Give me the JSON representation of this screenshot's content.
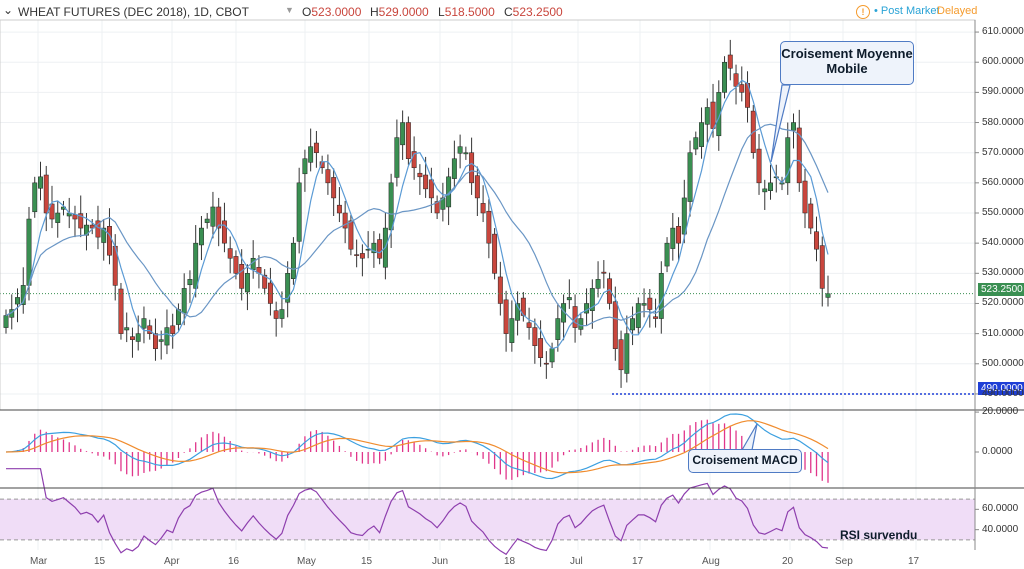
{
  "header": {
    "symbol": "WHEAT FUTURES (DEC 2018), 1D, CBOT",
    "open_label": "O",
    "open": "523.0000",
    "high_label": "H",
    "high": "529.0000",
    "low_label": "L",
    "low": "518.5000",
    "close_label": "C",
    "close": "523.2500",
    "status_icon": "!",
    "post_market": "Post Market",
    "delayed": "Delayed"
  },
  "annotations": {
    "ma_cross": "Croisement Moyenne Mobile",
    "macd_cross": "Croisement MACD",
    "rsi": "RSI survendu"
  },
  "price_tags": {
    "last": "523.2500",
    "support": "490.0000"
  },
  "colors": {
    "up": "#3a8f52",
    "down": "#c9463d",
    "ma_fast": "#5b9bd5",
    "ma_slow": "#6a96c5",
    "macd": "#3ca0e0",
    "signal": "#f08c2e",
    "hist": "#e0358a",
    "rsi": "#8e3fae",
    "rsi_band": "#f0ddf7",
    "support": "#1f3fd6"
  },
  "chart_data": [
    {
      "type": "candlestick",
      "title": "WHEAT FUTURES (DEC 2018), 1D, CBOT",
      "ylim": [
        486,
        614
      ],
      "y_ticks": [
        490,
        500,
        510,
        520,
        530,
        540,
        550,
        560,
        570,
        580,
        590,
        600,
        610
      ],
      "x_ticks": [
        "Mar",
        "15",
        "Apr",
        "16",
        "May",
        "15",
        "Jun",
        "18",
        "Jul",
        "17",
        "Aug",
        "20",
        "Sep",
        "17"
      ],
      "close": [
        516,
        518,
        522,
        526,
        548,
        560,
        562,
        550,
        548,
        550,
        552,
        550,
        548,
        545,
        546,
        545,
        542,
        545,
        536,
        526,
        510,
        512,
        508,
        510,
        515,
        510,
        505,
        508,
        512,
        510,
        518,
        525,
        528,
        540,
        545,
        548,
        552,
        545,
        540,
        535,
        530,
        525,
        530,
        535,
        530,
        525,
        520,
        515,
        518,
        530,
        540,
        560,
        568,
        572,
        570,
        565,
        560,
        555,
        550,
        545,
        538,
        536,
        535,
        538,
        540,
        535,
        545,
        560,
        575,
        580,
        568,
        565,
        562,
        558,
        555,
        550,
        555,
        562,
        568,
        572,
        570,
        560,
        555,
        550,
        540,
        530,
        520,
        510,
        515,
        520,
        516,
        512,
        506,
        502,
        500,
        505,
        515,
        520,
        522,
        512,
        515,
        520,
        525,
        528,
        530,
        520,
        505,
        498,
        510,
        515,
        520,
        520,
        518,
        515,
        530,
        540,
        545,
        540,
        555,
        570,
        575,
        580,
        585,
        578,
        590,
        600,
        598,
        592,
        590,
        585,
        570,
        560,
        558,
        560,
        562,
        560,
        575,
        580,
        560,
        550,
        545,
        538,
        525,
        523.25
      ],
      "ma_fast_label": "",
      "ma_slow_label": ""
    },
    {
      "type": "line",
      "panel": "MACD",
      "y_ticks": [
        0,
        20
      ],
      "series": [
        {
          "name": "",
          "role": "macd"
        },
        {
          "name": "",
          "role": "signal"
        }
      ]
    },
    {
      "type": "line",
      "panel": "RSI",
      "y_ticks": [
        40,
        60
      ],
      "band": [
        30,
        70
      ],
      "series": [
        {
          "name": "",
          "role": "rsi"
        }
      ]
    }
  ]
}
